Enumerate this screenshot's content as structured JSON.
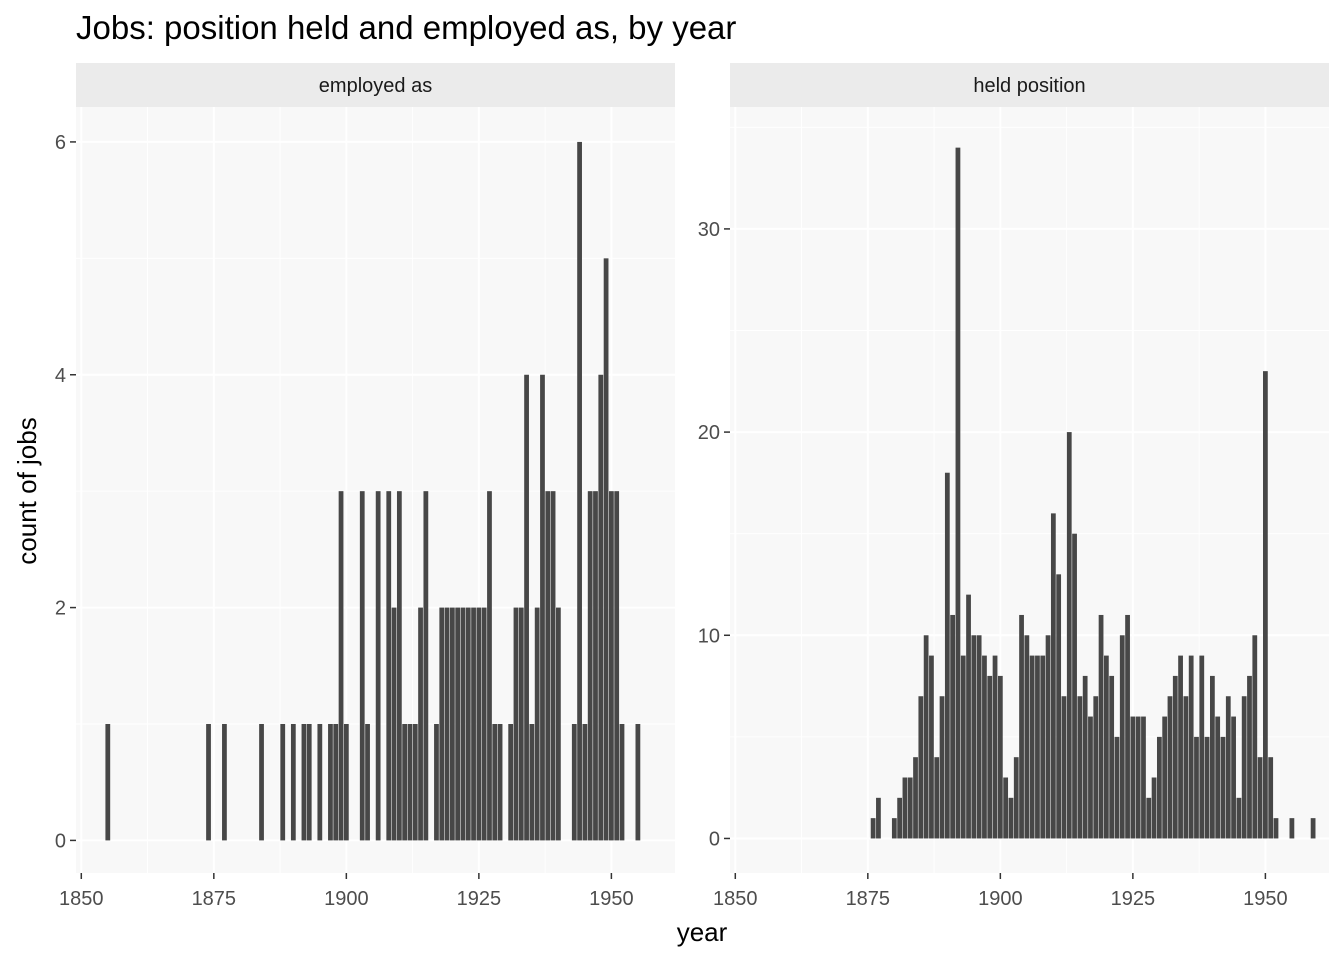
{
  "chart_data": {
    "type": "bar",
    "title": "Jobs: position held and employed as, by year",
    "xlabel": "year",
    "ylabel": "count of jobs",
    "colors": {
      "bar": "#474747",
      "panel_bg": "#f8f8f8",
      "strip_bg": "#ebebeb",
      "grid": "#ffffff"
    },
    "grid": true,
    "legend": "none",
    "panels": [
      {
        "strip": "employed as",
        "xlim": [
          1849,
          1962
        ],
        "ylim": [
          -0.28,
          6.3
        ],
        "xticks": [
          1850,
          1875,
          1900,
          1925,
          1950
        ],
        "yticks": [
          0,
          2,
          4,
          6
        ],
        "x": [
          1855,
          1874,
          1877,
          1884,
          1888,
          1890,
          1892,
          1893,
          1895,
          1897,
          1898,
          1899,
          1900,
          1903,
          1904,
          1906,
          1908,
          1909,
          1910,
          1911,
          1912,
          1913,
          1914,
          1915,
          1917,
          1918,
          1919,
          1920,
          1921,
          1922,
          1923,
          1924,
          1925,
          1926,
          1927,
          1928,
          1929,
          1931,
          1932,
          1933,
          1934,
          1935,
          1936,
          1937,
          1938,
          1939,
          1940,
          1943,
          1944,
          1945,
          1946,
          1947,
          1948,
          1949,
          1950,
          1951,
          1952,
          1955
        ],
        "y": [
          1,
          1,
          1,
          1,
          1,
          1,
          1,
          1,
          1,
          1,
          1,
          3,
          1,
          3,
          1,
          3,
          3,
          2,
          3,
          1,
          1,
          1,
          2,
          3,
          1,
          2,
          2,
          2,
          2,
          2,
          2,
          2,
          2,
          2,
          3,
          1,
          1,
          1,
          2,
          2,
          4,
          1,
          2,
          4,
          3,
          3,
          2,
          1,
          6,
          1,
          3,
          3,
          4,
          5,
          3,
          3,
          1,
          1
        ]
      },
      {
        "strip": "held position",
        "xlim": [
          1849,
          1962
        ],
        "ylim": [
          -1.7,
          36
        ],
        "xticks": [
          1850,
          1875,
          1900,
          1925,
          1950
        ],
        "yticks": [
          0,
          10,
          20,
          30
        ],
        "x": [
          1876,
          1877,
          1880,
          1881,
          1882,
          1883,
          1884,
          1885,
          1886,
          1887,
          1888,
          1889,
          1890,
          1891,
          1892,
          1893,
          1894,
          1895,
          1896,
          1897,
          1898,
          1899,
          1900,
          1901,
          1902,
          1903,
          1904,
          1905,
          1906,
          1907,
          1908,
          1909,
          1910,
          1911,
          1912,
          1913,
          1914,
          1915,
          1916,
          1917,
          1918,
          1919,
          1920,
          1921,
          1922,
          1923,
          1924,
          1925,
          1926,
          1927,
          1928,
          1929,
          1930,
          1931,
          1932,
          1933,
          1934,
          1935,
          1936,
          1937,
          1938,
          1939,
          1940,
          1941,
          1942,
          1943,
          1944,
          1945,
          1946,
          1947,
          1948,
          1949,
          1950,
          1951,
          1952,
          1955,
          1959
        ],
        "y": [
          1,
          2,
          1,
          2,
          3,
          3,
          4,
          7,
          10,
          9,
          4,
          7,
          18,
          11,
          34,
          9,
          12,
          10,
          10,
          9,
          8,
          9,
          8,
          3,
          2,
          4,
          11,
          10,
          9,
          9,
          9,
          10,
          16,
          13,
          7,
          20,
          15,
          7,
          8,
          6,
          7,
          11,
          9,
          8,
          5,
          10,
          11,
          6,
          6,
          6,
          2,
          3,
          5,
          6,
          7,
          8,
          9,
          7,
          9,
          5,
          9,
          5,
          8,
          6,
          5,
          7,
          6,
          2,
          7,
          8,
          10,
          4,
          23,
          4,
          1,
          1,
          1
        ]
      }
    ]
  }
}
